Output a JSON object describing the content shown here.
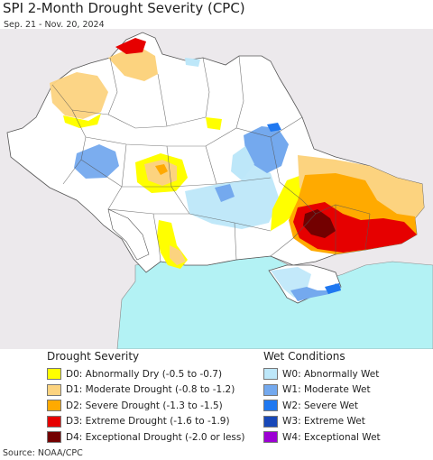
{
  "header": {
    "title": "SPI 2-Month Drought Severity (CPC)",
    "subtitle": "Sep. 21 - Nov. 20, 2024"
  },
  "legend": {
    "drought": {
      "heading": "Drought Severity",
      "items": [
        {
          "label": "D0: Abnormally Dry (-0.5 to -0.7)",
          "color": "#ffff00"
        },
        {
          "label": "D1: Moderate Drought (-0.8 to -1.2)",
          "color": "#fcd37f"
        },
        {
          "label": "D2: Severe Drought (-1.3 to -1.5)",
          "color": "#ffaa00"
        },
        {
          "label": "D3: Extreme Drought (-1.6 to -1.9)",
          "color": "#e60000"
        },
        {
          "label": "D4: Exceptional Drought (-2.0 or less)",
          "color": "#730000"
        }
      ]
    },
    "wet": {
      "heading": "Wet Conditions",
      "items": [
        {
          "label": "W0: Abnormally Wet",
          "color": "#bde7f9"
        },
        {
          "label": "W1: Moderate Wet",
          "color": "#74a9ee"
        },
        {
          "label": "W2: Severe Wet",
          "color": "#1f78f0"
        },
        {
          "label": "W3: Extreme Wet",
          "color": "#1848b8"
        },
        {
          "label": "W4: Exceptional Wet",
          "color": "#9c00d4"
        }
      ]
    }
  },
  "footer": {
    "source": "Source: NOAA/CPC"
  },
  "colors": {
    "sea": "#b3f2f4",
    "outside_land": "#ece9ec",
    "land": "#ffffff",
    "borders": "#555555"
  }
}
